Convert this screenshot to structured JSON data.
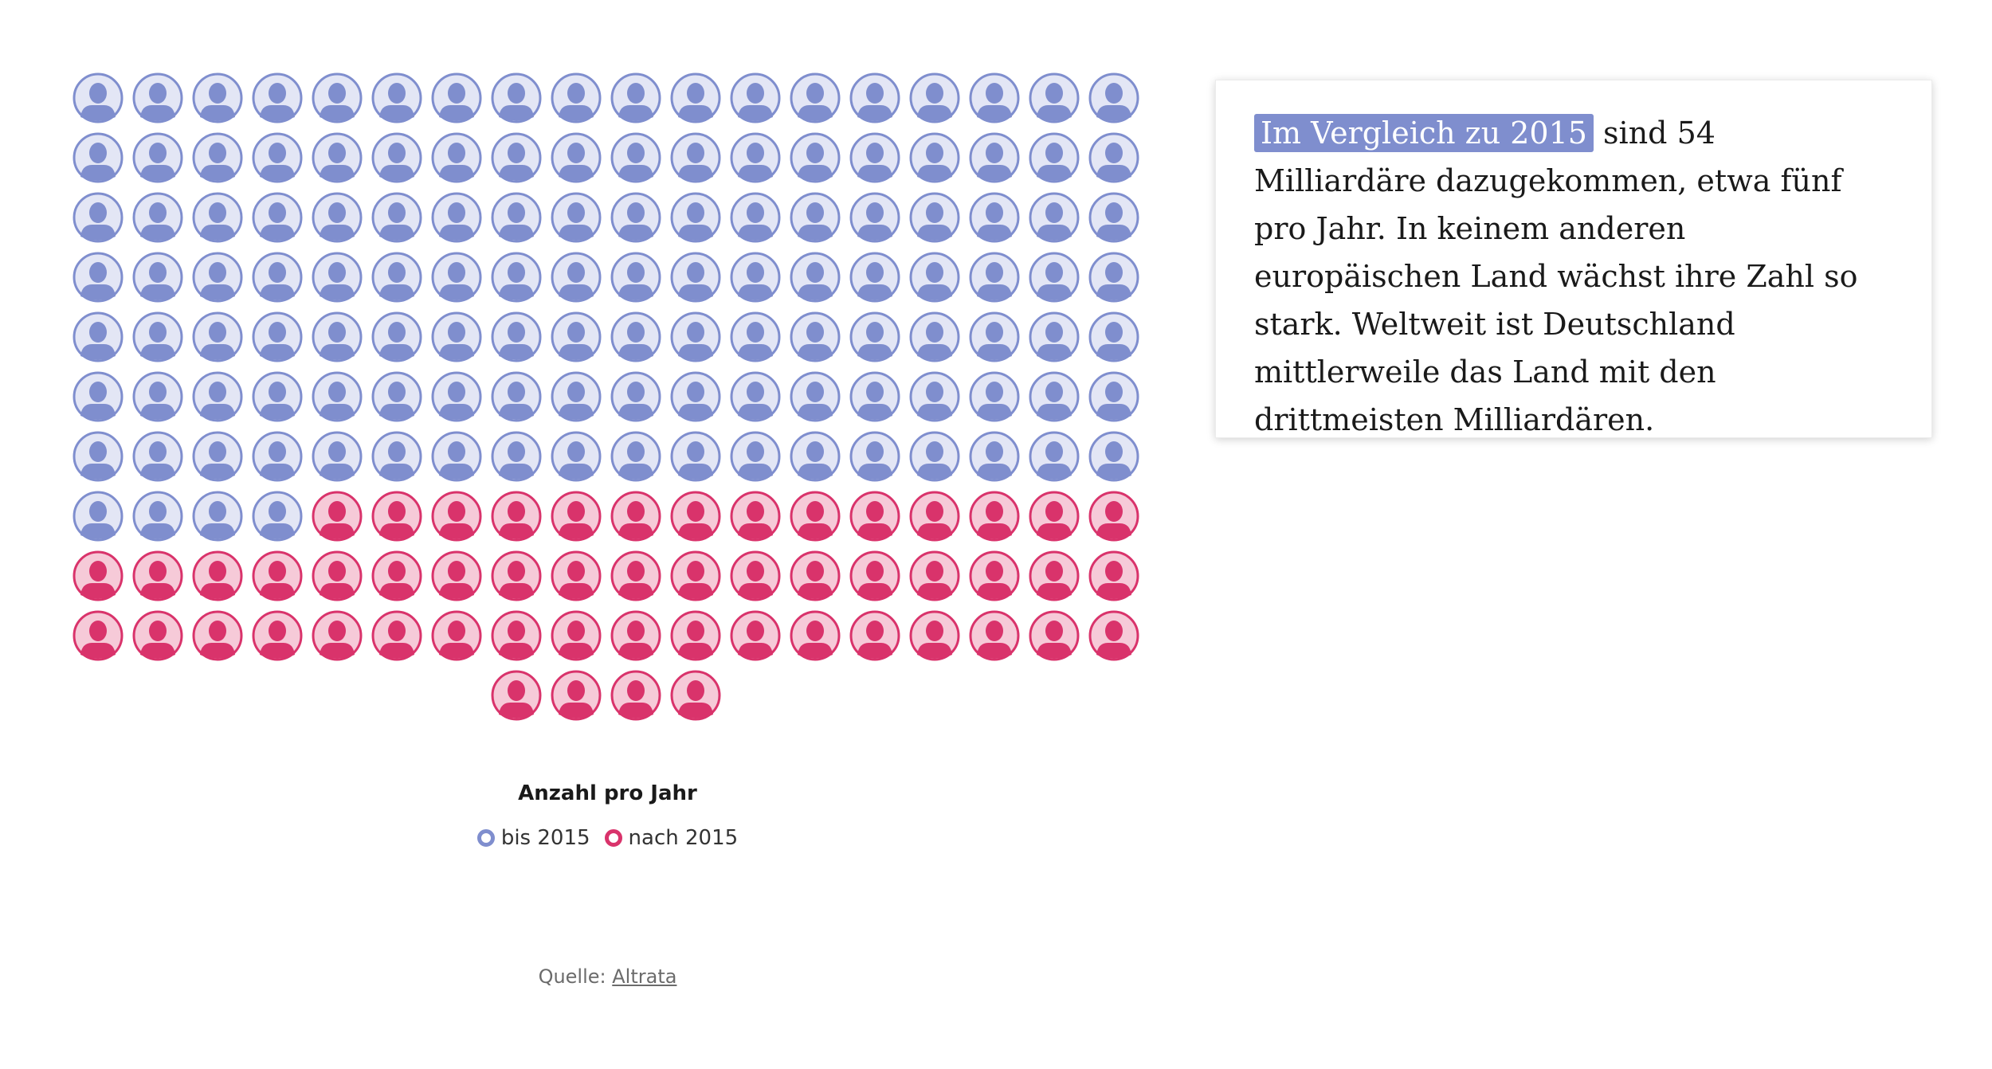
{
  "chart_data": {
    "type": "waffle",
    "title": "",
    "units_per_row": 18,
    "series": [
      {
        "name": "bis 2015",
        "values": [
          130
        ],
        "color": "#7f8ece",
        "fill": "#e3e6f5"
      },
      {
        "name": "nach 2015",
        "values": [
          54
        ],
        "color": "#d9336b",
        "fill": "#f6cad8"
      }
    ],
    "legend_title": "Anzahl pro Jahr",
    "legend_position": "bottom-center"
  },
  "callout": {
    "highlight": "Im Vergleich zu 2015",
    "text": " sind 54 Milliardäre dazugekommen, etwa fünf pro Jahr. In keinem anderen europäischen Land wächst ihre Zahl so stark. Weltweit ist Deutschland mittlerweile das Land mit den drittmeisten Milliardären."
  },
  "source": {
    "label": "Quelle: ",
    "link": "Altrata"
  }
}
